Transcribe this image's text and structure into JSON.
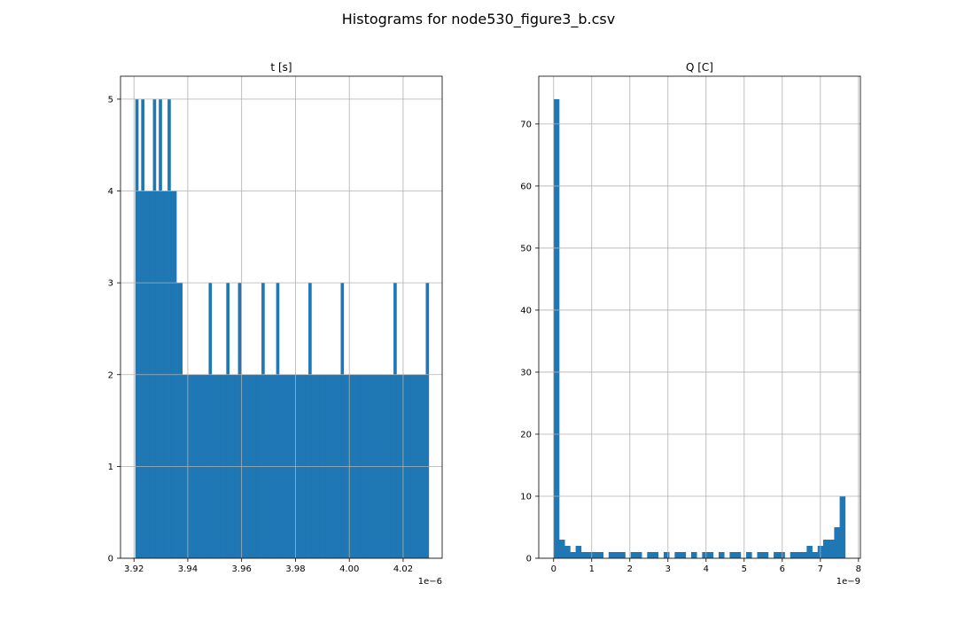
{
  "figure": {
    "title": "Histograms for node530_figure3_b.csv"
  },
  "colors": {
    "bar": "#1f77b4",
    "grid": "#b0b0b0",
    "axis": "#000000"
  },
  "chart_data": [
    {
      "type": "bar",
      "title": "t [s]",
      "xlabel": "",
      "ylabel": "",
      "grid": true,
      "xlim": [
        3.915,
        4.0345
      ],
      "ylim": [
        0,
        5.25
      ],
      "x_scale_label": "1e−6",
      "x_ticks": [
        3.92,
        3.94,
        3.96,
        3.98,
        4.0,
        4.02
      ],
      "x_tick_labels": [
        "3.92",
        "3.94",
        "3.96",
        "3.98",
        "4.00",
        "4.02"
      ],
      "y_ticks": [
        0,
        1,
        2,
        3,
        4,
        5
      ],
      "y_tick_labels": [
        "0",
        "1",
        "2",
        "3",
        "4",
        "5"
      ],
      "bin_range": [
        3.9205,
        4.0295
      ],
      "counts": [
        5,
        4,
        5,
        4,
        4,
        4,
        5,
        4,
        5,
        4,
        4,
        5,
        4,
        4,
        3,
        3,
        2,
        2,
        2,
        2,
        2,
        2,
        2,
        2,
        2,
        3,
        2,
        2,
        2,
        2,
        2,
        3,
        2,
        2,
        2,
        3,
        2,
        2,
        2,
        2,
        2,
        2,
        2,
        3,
        2,
        2,
        2,
        2,
        3,
        2,
        2,
        2,
        2,
        2,
        2,
        2,
        2,
        2,
        2,
        3,
        2,
        2,
        2,
        2,
        2,
        2,
        2,
        2,
        2,
        2,
        3,
        2,
        2,
        2,
        2,
        2,
        2,
        2,
        2,
        2,
        2,
        2,
        2,
        2,
        2,
        2,
        2,
        2,
        3,
        2,
        2,
        2,
        2,
        2,
        2,
        2,
        2,
        2,
        2,
        3
      ]
    },
    {
      "type": "bar",
      "title": "Q [C]",
      "xlabel": "",
      "ylabel": "",
      "grid": true,
      "xlim": [
        -0.39,
        8.05
      ],
      "ylim": [
        0,
        77.7
      ],
      "x_scale_label": "1e−9",
      "x_ticks": [
        0,
        1,
        2,
        3,
        4,
        5,
        6,
        7,
        8
      ],
      "x_tick_labels": [
        "0",
        "1",
        "2",
        "3",
        "4",
        "5",
        "6",
        "7",
        "8"
      ],
      "y_ticks": [
        0,
        10,
        20,
        30,
        40,
        50,
        60,
        70
      ],
      "y_tick_labels": [
        "0",
        "10",
        "20",
        "30",
        "40",
        "50",
        "60",
        "70"
      ],
      "bin_range": [
        0,
        7.65
      ],
      "counts": [
        74,
        3,
        2,
        1,
        2,
        1,
        1,
        1,
        1,
        0,
        1,
        1,
        1,
        0,
        1,
        1,
        0,
        1,
        1,
        0,
        1,
        0,
        1,
        1,
        0,
        1,
        0,
        1,
        1,
        0,
        1,
        0,
        1,
        1,
        0,
        1,
        0,
        1,
        1,
        0,
        1,
        1,
        0,
        1,
        1,
        1,
        2,
        1,
        2,
        3,
        3,
        5,
        10
      ]
    }
  ]
}
